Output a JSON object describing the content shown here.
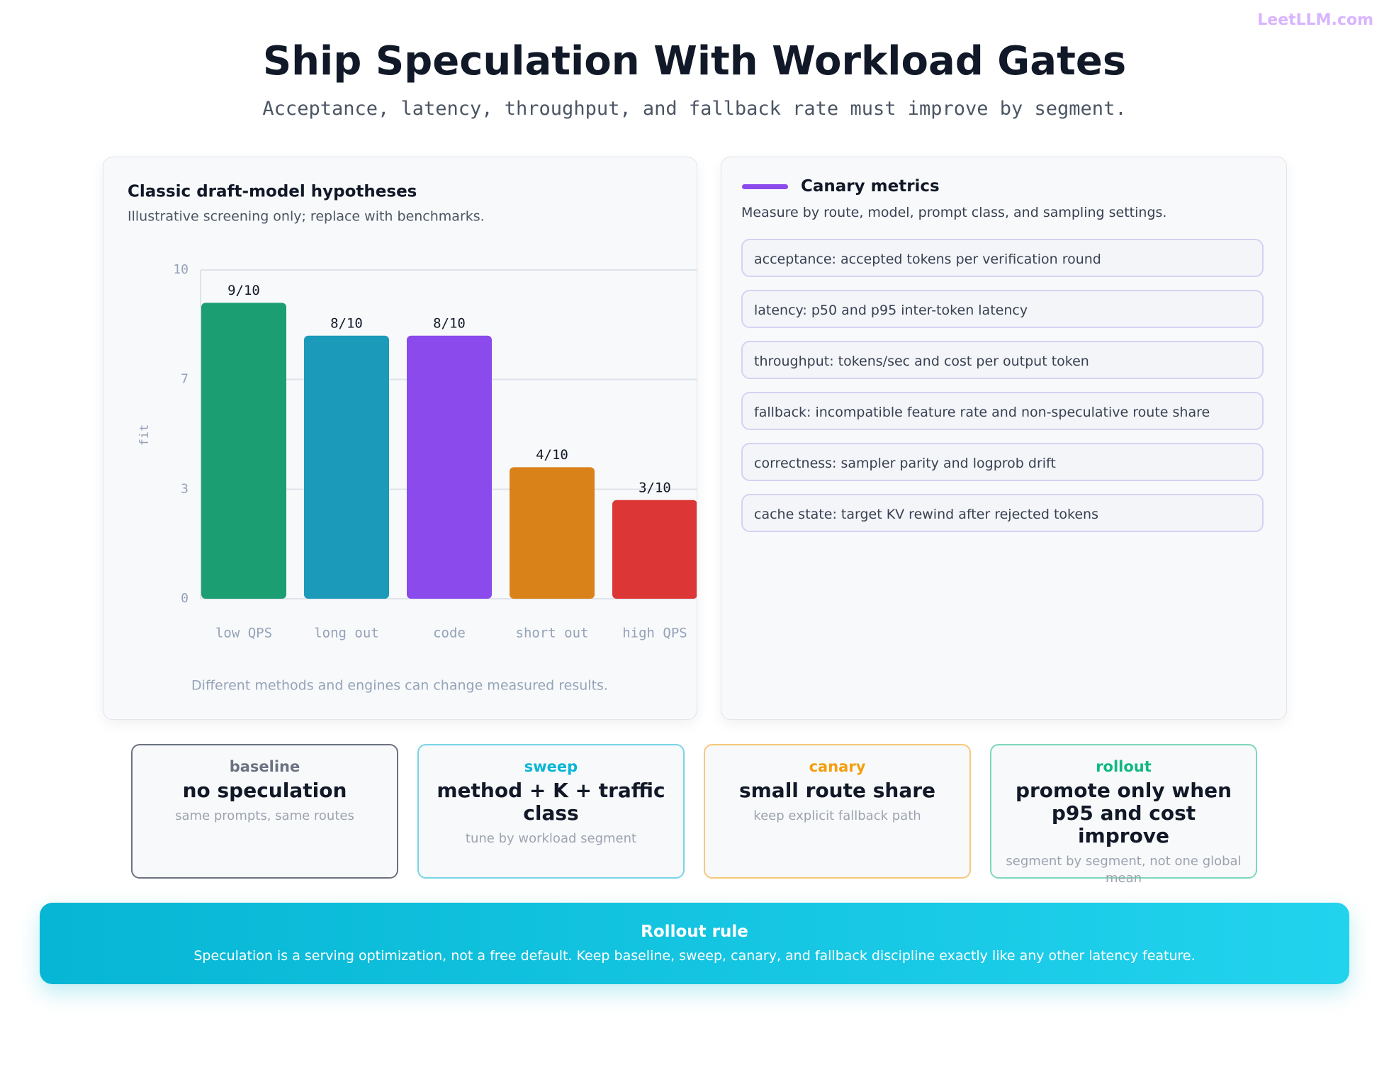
{
  "brand": "LeetLLM.com",
  "header": {
    "title": "Ship Speculation With Workload Gates",
    "subtitle": "Acceptance, latency, throughput, and fallback rate must improve by segment."
  },
  "chart_data": {
    "type": "bar",
    "title": "Classic draft-model hypotheses",
    "subtitle": "Illustrative screening only; replace with benchmarks.",
    "categories": [
      "low QPS",
      "long out",
      "code",
      "short out",
      "high QPS"
    ],
    "values": [
      9,
      8,
      8,
      4,
      3
    ],
    "value_labels": [
      "9/10",
      "8/10",
      "8/10",
      "4/10",
      "3/10"
    ],
    "colors": [
      "#1a9e72",
      "#1b9aba",
      "#8b4aec",
      "#d9821a",
      "#dc3636"
    ],
    "ylim": [
      0,
      10
    ],
    "yticks": [
      0,
      {
        "value": 3.33,
        "label": "3"
      },
      {
        "value": 6.67,
        "label": "7"
      },
      10
    ],
    "ylabel": "fit",
    "grid": true,
    "note": "Different methods and engines can change measured results."
  },
  "metrics": {
    "title": "Canary metrics",
    "subtitle": "Measure by route, model, prompt class, and sampling settings.",
    "items": [
      "acceptance: accepted tokens per verification round",
      "latency: p50 and p95 inter-token latency",
      "throughput: tokens/sec and cost per output token",
      "fallback: incompatible feature rate and non-speculative route share",
      "correctness: sampler parity and logprob drift",
      "cache state: target KV rewind after rejected tokens"
    ]
  },
  "stages": [
    {
      "label": "baseline",
      "headline": "no speculation",
      "detail": "same prompts, same routes",
      "color": "#6b7280"
    },
    {
      "label": "sweep",
      "headline": "method + K + traffic class",
      "detail": "tune by workload segment",
      "color": "#06b6d4"
    },
    {
      "label": "canary",
      "headline": "small route share",
      "detail": "keep explicit fallback path",
      "color": "#f59e0b"
    },
    {
      "label": "rollout",
      "headline": "promote only when p95 and cost improve",
      "detail": "segment by segment, not one global mean",
      "color": "#10b981"
    }
  ],
  "rule": {
    "title": "Rollout rule",
    "text": "Speculation is a serving optimization, not a free default. Keep baseline, sweep, canary, and fallback discipline exactly like any other latency feature."
  }
}
